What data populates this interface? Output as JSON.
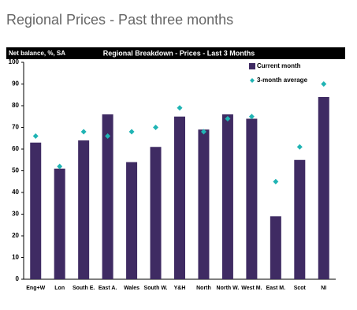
{
  "page_title": "Regional Prices - Past three months",
  "chart_data": {
    "type": "bar",
    "title": "Regional Breakdown - Prices - Last 3 Months",
    "y_label": "Net balance, %, SA",
    "categories": [
      "Eng+W",
      "Lon",
      "South E.",
      "East A.",
      "Wales",
      "South W.",
      "Y&H",
      "North",
      "North W.",
      "West M.",
      "East M.",
      "Scot",
      "NI"
    ],
    "series": [
      {
        "name": "Current month",
        "color": "#3f2b63",
        "marker": "bar",
        "values": [
          63,
          51,
          64,
          76,
          54,
          61,
          75,
          69,
          76,
          74,
          29,
          55,
          84
        ]
      },
      {
        "name": "3-month average",
        "color": "#20b4b4",
        "marker": "diamond",
        "values": [
          66,
          52,
          68,
          66,
          68,
          70,
          79,
          68,
          74,
          75,
          45,
          61,
          90
        ]
      }
    ],
    "ylim": [
      0,
      100
    ],
    "yticks": [
      0,
      10,
      20,
      30,
      40,
      50,
      60,
      70,
      80,
      90,
      100
    ],
    "grid": false,
    "legend": "top-right"
  }
}
